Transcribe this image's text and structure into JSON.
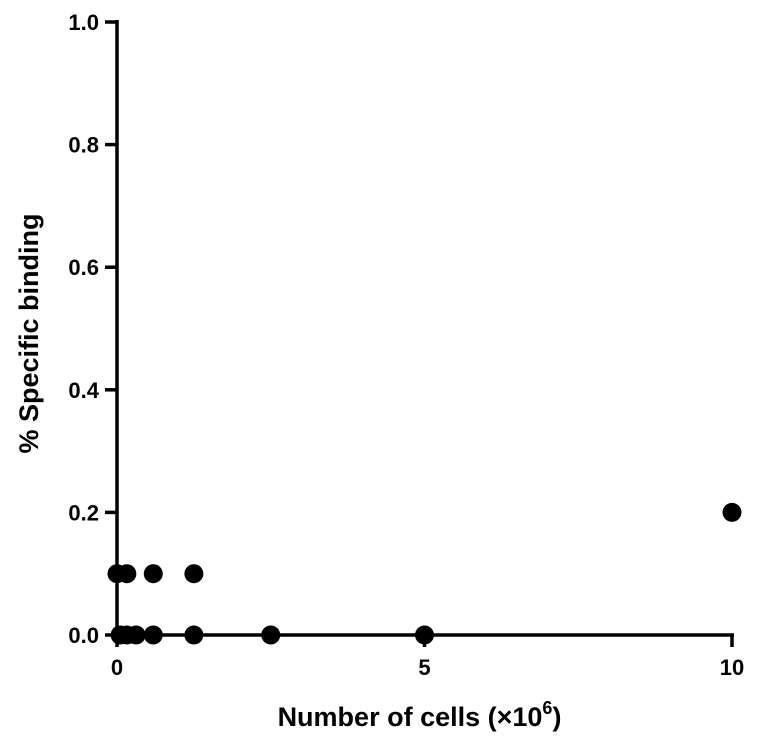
{
  "chart_data": {
    "type": "scatter",
    "title": "",
    "xlabel": "Number of cells (×10",
    "xlabel_exponent": "6",
    "xlabel_suffix": ")",
    "ylabel": "% Specific binding",
    "xlim": [
      0,
      10
    ],
    "ylim": [
      0,
      1.0
    ],
    "x_ticks": [
      0,
      5,
      10
    ],
    "x_tick_labels": [
      "0",
      "5",
      "10"
    ],
    "y_ticks": [
      0.0,
      0.2,
      0.4,
      0.6,
      0.8,
      1.0
    ],
    "y_tick_labels": [
      "0.0",
      "0.2",
      "0.4",
      "0.6",
      "0.8",
      "1.0"
    ],
    "grid": false,
    "marker_color": "#000000",
    "series": [
      {
        "points": [
          {
            "x": 0.0,
            "y": 0.1
          },
          {
            "x": 0.05,
            "y": 0.0
          },
          {
            "x": 0.16,
            "y": 0.1
          },
          {
            "x": 0.16,
            "y": 0.0
          },
          {
            "x": 0.31,
            "y": 0.0
          },
          {
            "x": 0.59,
            "y": 0.1
          },
          {
            "x": 0.59,
            "y": 0.0
          },
          {
            "x": 1.25,
            "y": 0.1
          },
          {
            "x": 1.25,
            "y": 0.0
          },
          {
            "x": 2.5,
            "y": 0.0
          },
          {
            "x": 5.0,
            "y": 0.0
          },
          {
            "x": 10.0,
            "y": 0.2
          }
        ]
      }
    ]
  }
}
